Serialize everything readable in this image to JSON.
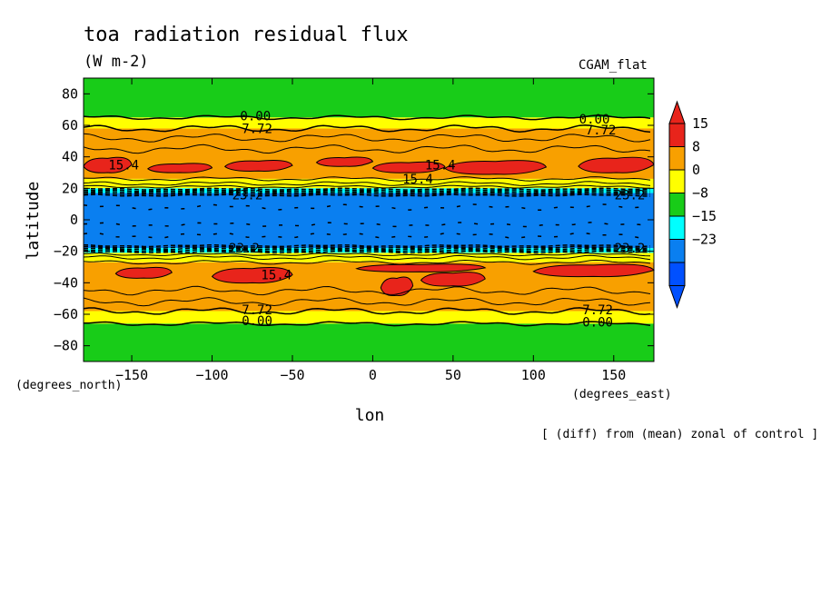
{
  "title": "toa radiation residual flux",
  "units": "(W m-2)",
  "model_label": "CGAM_flat",
  "footnote": "[ (diff) from (mean) zonal of control ]",
  "chart_data": {
    "type": "heatmap",
    "title": "toa radiation residual flux",
    "subtitle": "(W m-2)",
    "xlabel": "lon",
    "ylabel": "latitude",
    "x_units": "(degrees_east)",
    "y_units": "(degrees_north)",
    "xlim": [
      -180,
      175
    ],
    "ylim": [
      -90,
      90
    ],
    "x_ticks": [
      -150,
      -100,
      -50,
      0,
      50,
      100,
      150
    ],
    "y_ticks": [
      80,
      60,
      40,
      20,
      0,
      -20,
      -40,
      -60,
      -80
    ],
    "colorbar": {
      "labels": [
        "15",
        "8",
        "0",
        "-8",
        "-15",
        "-23"
      ],
      "colors": [
        "#e8241b",
        "#f8a000",
        "#ffff00",
        "#18cc18",
        "#00ffff",
        "#0a7ff0",
        "#0050ff"
      ]
    },
    "zonal_bands": [
      {
        "lat_min": 65,
        "lat_max": 90,
        "color": "#18cc18"
      },
      {
        "lat_min": 58,
        "lat_max": 65,
        "color": "#ffff00"
      },
      {
        "lat_min": 26,
        "lat_max": 58,
        "color": "#f8a000"
      },
      {
        "lat_min": 20,
        "lat_max": 26,
        "color": "#ffff00"
      },
      {
        "lat_min": 17,
        "lat_max": 20,
        "color": "#00ffff"
      },
      {
        "lat_min": -18,
        "lat_max": 17,
        "color": "#0a7ff0"
      },
      {
        "lat_min": -21,
        "lat_max": -18,
        "color": "#00ffff"
      },
      {
        "lat_min": -27,
        "lat_max": -21,
        "color": "#ffff00"
      },
      {
        "lat_min": -58,
        "lat_max": -27,
        "color": "#f8a000"
      },
      {
        "lat_min": -66,
        "lat_max": -58,
        "color": "#ffff00"
      },
      {
        "lat_min": -90,
        "lat_max": -66,
        "color": "#18cc18"
      }
    ],
    "red_patches_nh": [
      {
        "lon1": -180,
        "lon2": -150,
        "lat1": 30,
        "lat2": 40
      },
      {
        "lon1": -140,
        "lon2": -100,
        "lat1": 30,
        "lat2": 36
      },
      {
        "lon1": -92,
        "lon2": -50,
        "lat1": 31,
        "lat2": 38
      },
      {
        "lon1": -35,
        "lon2": 0,
        "lat1": 34,
        "lat2": 40
      },
      {
        "lon1": 0,
        "lon2": 45,
        "lat1": 30,
        "lat2": 37
      },
      {
        "lon1": 45,
        "lon2": 108,
        "lat1": 29,
        "lat2": 38
      },
      {
        "lon1": 128,
        "lon2": 175,
        "lat1": 30,
        "lat2": 40
      }
    ],
    "red_patches_sh": [
      {
        "lon1": -160,
        "lon2": -125,
        "lat1": -37,
        "lat2": -30
      },
      {
        "lon1": -100,
        "lon2": -50,
        "lat1": -40,
        "lat2": -30
      },
      {
        "lon1": -10,
        "lon2": 70,
        "lat1": -33,
        "lat2": -28
      },
      {
        "lon1": 5,
        "lon2": 25,
        "lat1": -48,
        "lat2": -36
      },
      {
        "lon1": 30,
        "lon2": 70,
        "lat1": -42,
        "lat2": -33
      },
      {
        "lon1": 100,
        "lon2": 175,
        "lat1": -36,
        "lat2": -28
      }
    ],
    "contour_labels": [
      {
        "text": "0.00",
        "lon": -73,
        "lat": 66
      },
      {
        "text": "7.72",
        "lon": -72,
        "lat": 58
      },
      {
        "text": "0.00",
        "lon": 138,
        "lat": 64
      },
      {
        "text": "7.72",
        "lon": 142,
        "lat": 57
      },
      {
        "text": "15.4",
        "lon": -155,
        "lat": 35
      },
      {
        "text": "15.4",
        "lon": 42,
        "lat": 35
      },
      {
        "text": "15.4",
        "lon": 28,
        "lat": 26
      },
      {
        "text": "23.2",
        "lon": -78,
        "lat": 16
      },
      {
        "text": "23.2",
        "lon": 160,
        "lat": 16
      },
      {
        "text": "23.2",
        "lon": -80,
        "lat": -18
      },
      {
        "text": "23.2",
        "lon": 160,
        "lat": -18
      },
      {
        "text": "15.4",
        "lon": -60,
        "lat": -35
      },
      {
        "text": "7.72",
        "lon": -72,
        "lat": -57
      },
      {
        "text": "0.00",
        "lon": -72,
        "lat": -64
      },
      {
        "text": "7.72",
        "lon": 140,
        "lat": -57
      },
      {
        "text": "0.00",
        "lon": 140,
        "lat": -65
      }
    ]
  }
}
